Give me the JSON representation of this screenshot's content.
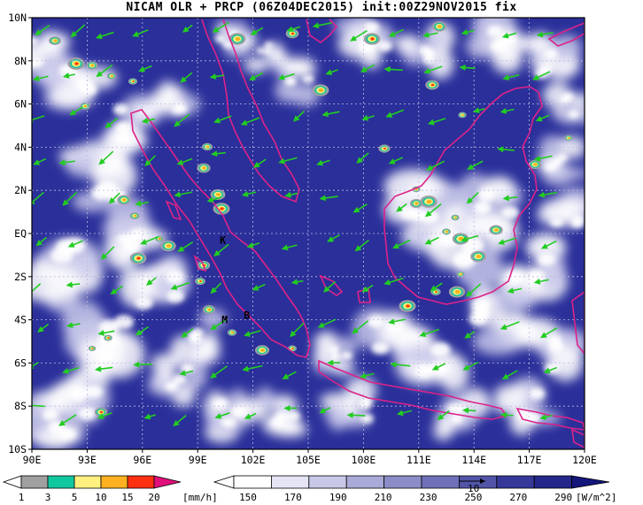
{
  "title": "NICAM OLR + PRCP (06Z04DEC2015) init:00Z29NOV2015 fix",
  "map": {
    "lon_range": [
      90,
      120
    ],
    "lat_range": [
      -10,
      10
    ],
    "x_ticks": [
      "90E",
      "93E",
      "96E",
      "99E",
      "102E",
      "105E",
      "108E",
      "111E",
      "114E",
      "117E",
      "120E"
    ],
    "y_ticks": [
      "10N",
      "8N",
      "6N",
      "4N",
      "2N",
      "EQ",
      "2S",
      "4S",
      "6S",
      "8S",
      "10S"
    ],
    "colors": {
      "background_olr_low": "#ffffff",
      "background_olr_high": "#2a2f9a",
      "coastline": "#dd2288",
      "wind_vectors": "#22cc22",
      "grid": "#9999bb"
    },
    "place_markers": [
      {
        "label": "K",
        "lon": 100.2,
        "lat": -0.3
      },
      {
        "label": "M",
        "lon": 100.3,
        "lat": -4.0
      },
      {
        "label": "B",
        "lon": 101.5,
        "lat": -3.8
      }
    ]
  },
  "precip_colorbar": {
    "ticks": [
      "1",
      "3",
      "5",
      "10",
      "15",
      "20"
    ],
    "unit": "[mm/h]",
    "colors": [
      "#a0a0a0",
      "#10c8a0",
      "#fff080",
      "#ffb020",
      "#ff3010",
      "#e0107a"
    ]
  },
  "olr_colorbar": {
    "ticks": [
      "150",
      "170",
      "190",
      "210",
      "230",
      "250",
      "270",
      "290"
    ],
    "unit": "[W/m^2]",
    "colors": [
      "#ffffff",
      "#e4e4f4",
      "#c8c8e8",
      "#aaaad8",
      "#8c8cc8",
      "#6e70b8",
      "#5254a8",
      "#36389a",
      "#24268a",
      "#14167a"
    ]
  }
}
